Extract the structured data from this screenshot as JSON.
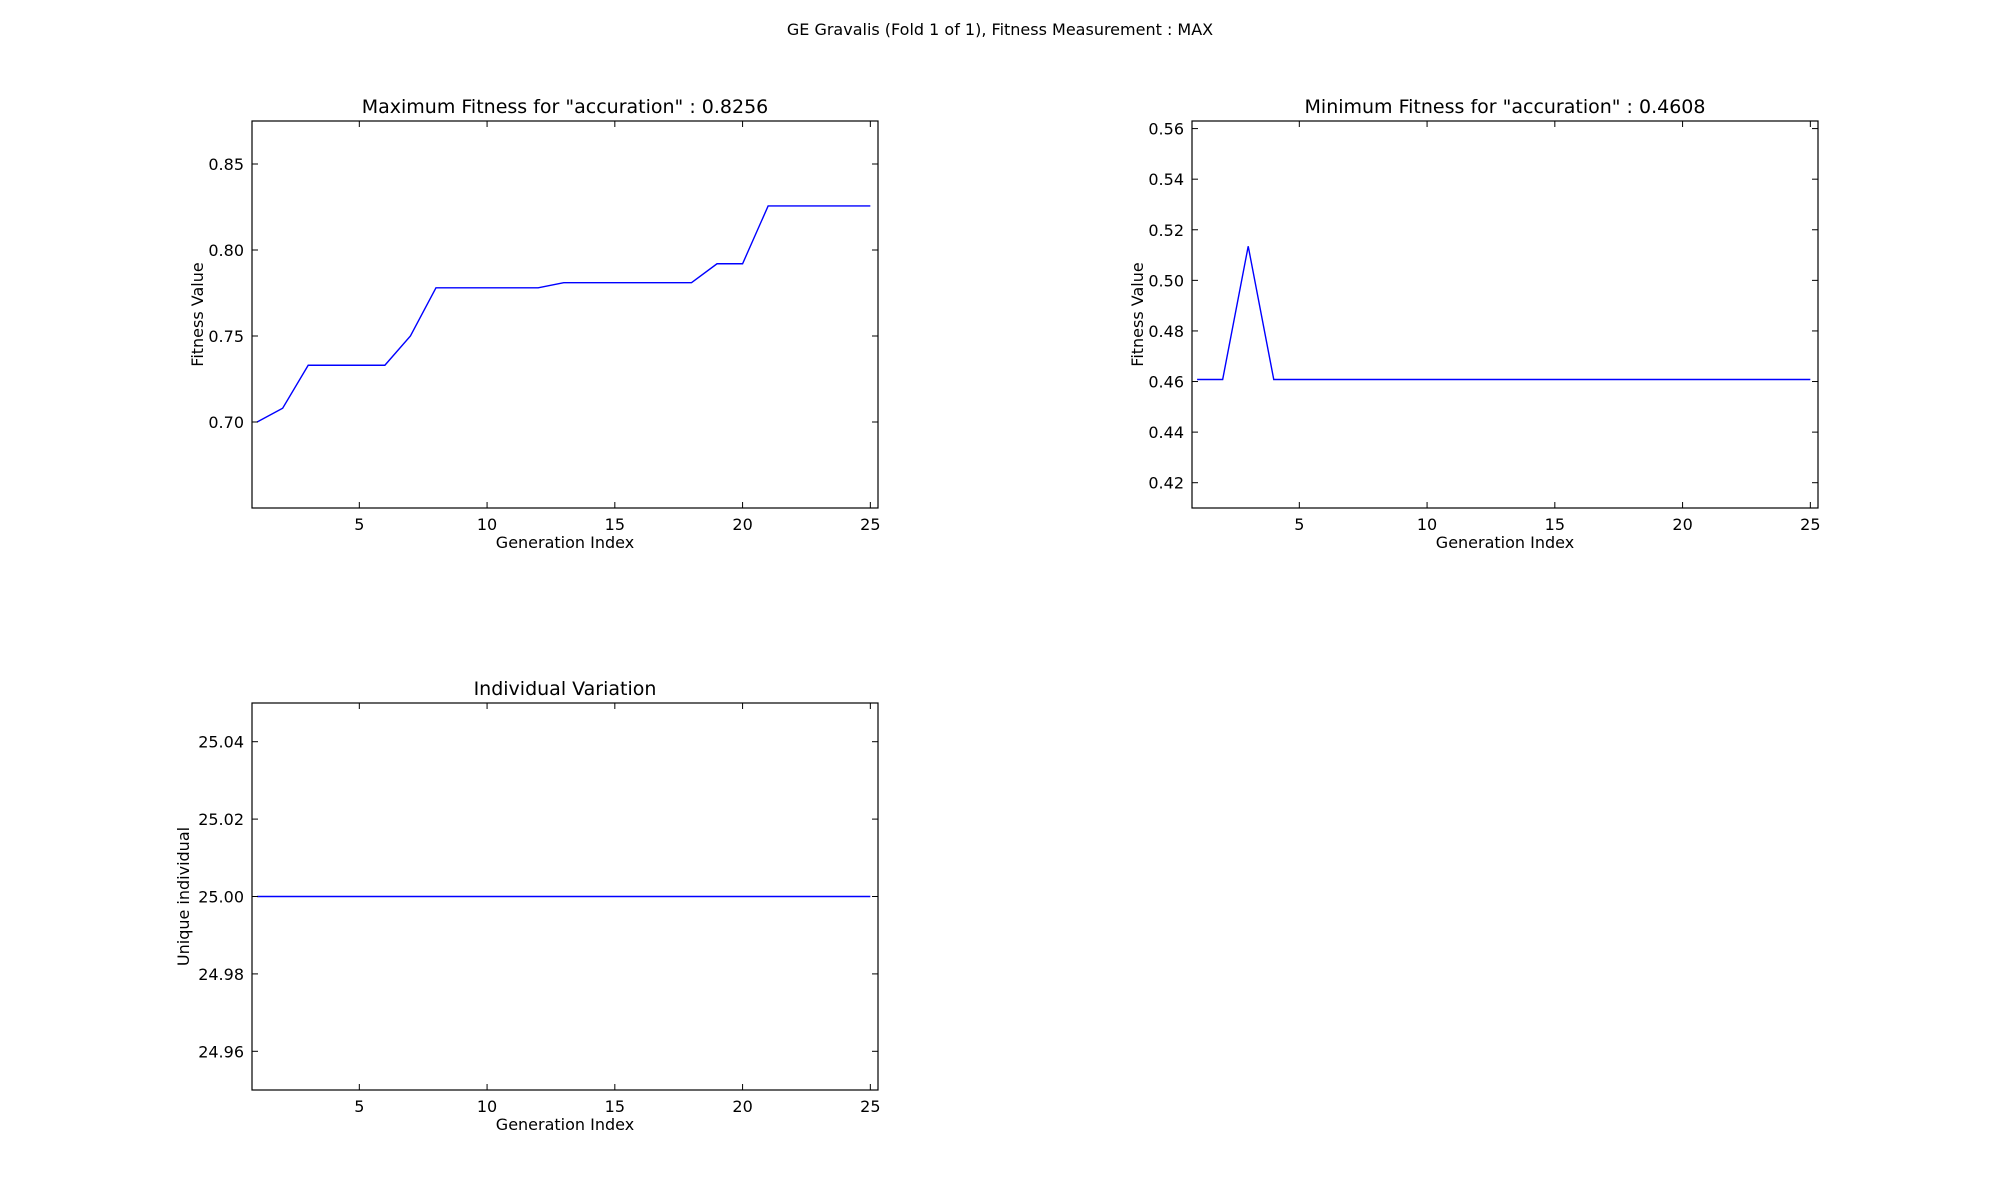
{
  "figure": {
    "title": "GE Gravalis (Fold 1 of 1), Fitness Measurement : MAX",
    "line_color": "#0000ff"
  },
  "chart_data": [
    {
      "type": "line",
      "title": "Maximum Fitness for \"accuration\" : 0.8256",
      "xlabel": "Generation Index",
      "ylabel": "Fitness Value",
      "xlim": [
        0.8,
        25.3
      ],
      "ylim": [
        0.65,
        0.875
      ],
      "xticks": [
        5,
        10,
        15,
        20,
        25
      ],
      "yticks": [
        0.7,
        0.75,
        0.8,
        0.85
      ],
      "ytick_labels": [
        "0.70",
        "0.75",
        "0.80",
        "0.85"
      ],
      "grid": false,
      "x": [
        1,
        2,
        3,
        4,
        5,
        6,
        7,
        8,
        9,
        10,
        11,
        12,
        13,
        14,
        15,
        16,
        17,
        18,
        19,
        20,
        21,
        22,
        23,
        24,
        25
      ],
      "series": [
        {
          "values": [
            0.7,
            0.708,
            0.733,
            0.733,
            0.733,
            0.733,
            0.75,
            0.778,
            0.778,
            0.778,
            0.778,
            0.778,
            0.781,
            0.781,
            0.781,
            0.781,
            0.781,
            0.781,
            0.792,
            0.792,
            0.8256,
            0.8256,
            0.8256,
            0.8256,
            0.8256
          ]
        }
      ]
    },
    {
      "type": "line",
      "title": "Minimum Fitness for \"accuration\" : 0.4608",
      "xlabel": "Generation Index",
      "ylabel": "Fitness Value",
      "xlim": [
        0.8,
        25.3
      ],
      "ylim": [
        0.41,
        0.563
      ],
      "xticks": [
        5,
        10,
        15,
        20,
        25
      ],
      "yticks": [
        0.42,
        0.44,
        0.46,
        0.48,
        0.5,
        0.52,
        0.54,
        0.56
      ],
      "ytick_labels": [
        "0.42",
        "0.44",
        "0.46",
        "0.48",
        "0.50",
        "0.52",
        "0.54",
        "0.56"
      ],
      "grid": false,
      "x": [
        1,
        2,
        3,
        4,
        5,
        6,
        7,
        8,
        9,
        10,
        11,
        12,
        13,
        14,
        15,
        16,
        17,
        18,
        19,
        20,
        21,
        22,
        23,
        24,
        25
      ],
      "series": [
        {
          "values": [
            0.4608,
            0.4608,
            0.5135,
            0.4608,
            0.4608,
            0.4608,
            0.4608,
            0.4608,
            0.4608,
            0.4608,
            0.4608,
            0.4608,
            0.4608,
            0.4608,
            0.4608,
            0.4608,
            0.4608,
            0.4608,
            0.4608,
            0.4608,
            0.4608,
            0.4608,
            0.4608,
            0.4608,
            0.4608
          ]
        }
      ]
    },
    {
      "type": "line",
      "title": "Individual Variation",
      "xlabel": "Generation Index",
      "ylabel": "Unique individual",
      "xlim": [
        0.8,
        25.3
      ],
      "ylim": [
        24.95,
        25.05
      ],
      "xticks": [
        5,
        10,
        15,
        20,
        25
      ],
      "yticks": [
        24.96,
        24.98,
        25.0,
        25.02,
        25.04
      ],
      "ytick_labels": [
        "24.96",
        "24.98",
        "25.00",
        "25.02",
        "25.04"
      ],
      "grid": false,
      "x": [
        1,
        2,
        3,
        4,
        5,
        6,
        7,
        8,
        9,
        10,
        11,
        12,
        13,
        14,
        15,
        16,
        17,
        18,
        19,
        20,
        21,
        22,
        23,
        24,
        25
      ],
      "series": [
        {
          "values": [
            25,
            25,
            25,
            25,
            25,
            25,
            25,
            25,
            25,
            25,
            25,
            25,
            25,
            25,
            25,
            25,
            25,
            25,
            25,
            25,
            25,
            25,
            25,
            25,
            25
          ]
        }
      ]
    }
  ]
}
